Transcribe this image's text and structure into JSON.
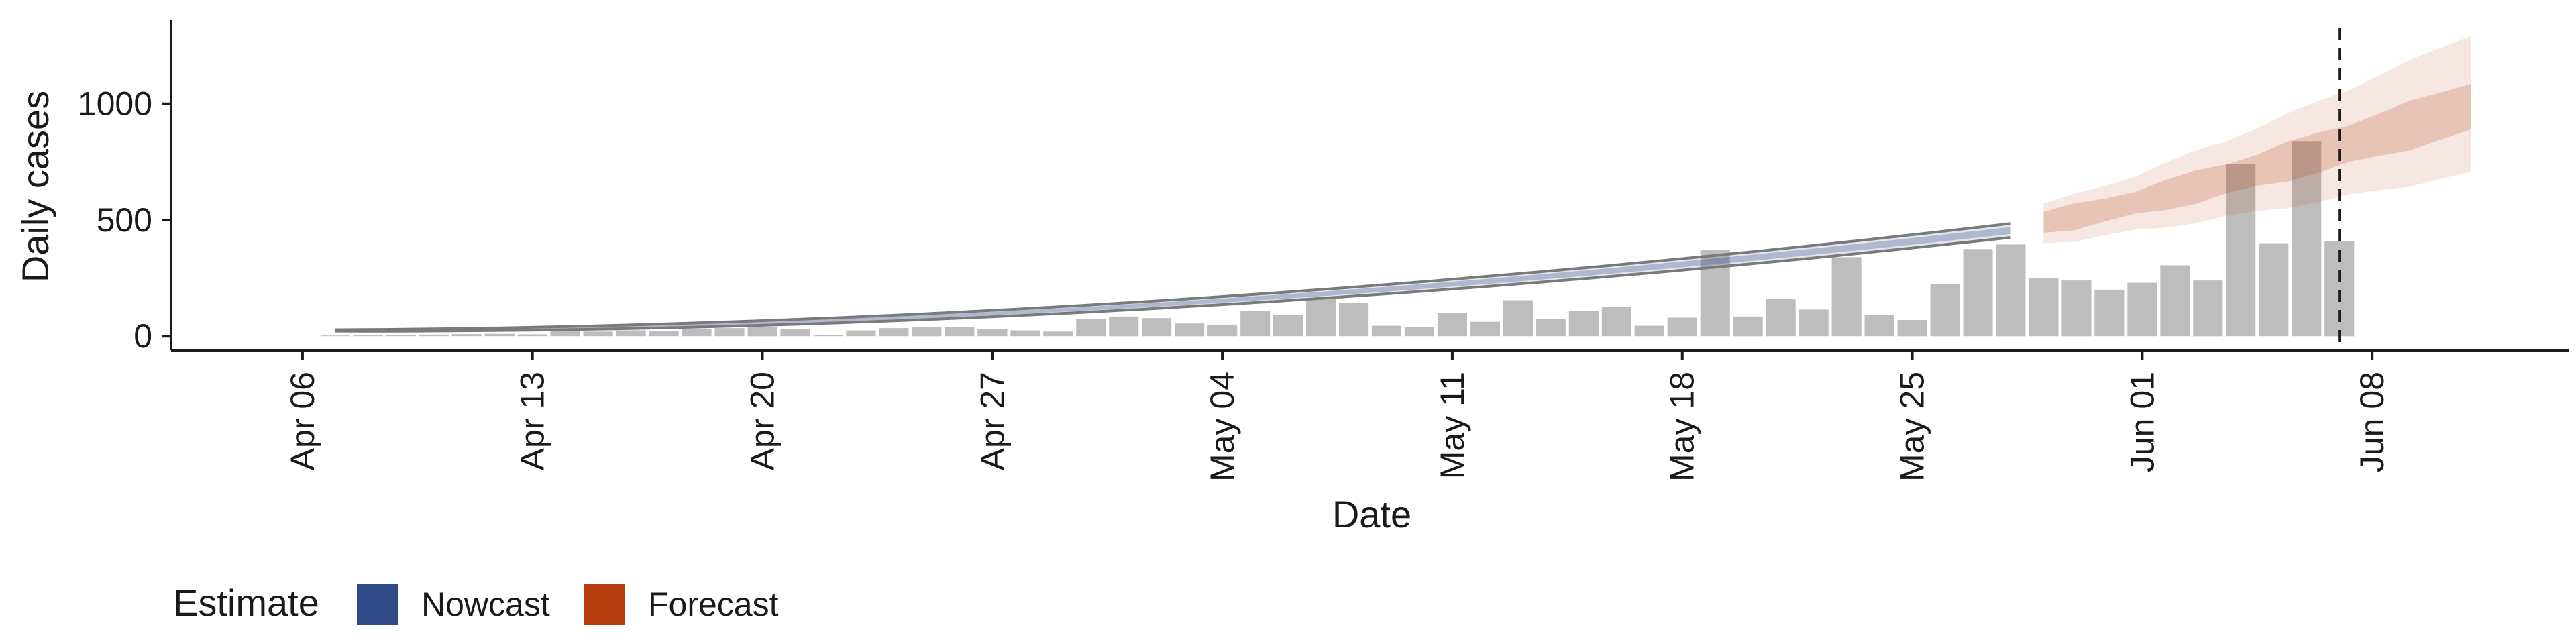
{
  "chart_data": {
    "type": "bar",
    "xlabel": "Date",
    "ylabel": "Daily cases",
    "x_range": [
      "2020-04-02",
      "2020-06-14"
    ],
    "ylim": [
      -60,
      1360
    ],
    "grid": false,
    "y_ticks": [
      0,
      500,
      1000
    ],
    "x_ticks": [
      {
        "date": "2020-04-06",
        "label": "Apr 06"
      },
      {
        "date": "2020-04-13",
        "label": "Apr 13"
      },
      {
        "date": "2020-04-20",
        "label": "Apr 20"
      },
      {
        "date": "2020-04-27",
        "label": "Apr 27"
      },
      {
        "date": "2020-05-04",
        "label": "May 04"
      },
      {
        "date": "2020-05-11",
        "label": "May 11"
      },
      {
        "date": "2020-05-18",
        "label": "May 18"
      },
      {
        "date": "2020-05-25",
        "label": "May 25"
      },
      {
        "date": "2020-06-01",
        "label": "Jun 01"
      },
      {
        "date": "2020-06-08",
        "label": "Jun 08"
      }
    ],
    "bars": {
      "start_date": "2020-04-07",
      "color": "#bdbdbd",
      "values": [
        3,
        5,
        5,
        7,
        9,
        10,
        8,
        25,
        20,
        25,
        22,
        30,
        35,
        40,
        30,
        5,
        25,
        35,
        40,
        38,
        32,
        25,
        20,
        75,
        85,
        78,
        55,
        50,
        110,
        90,
        160,
        145,
        45,
        38,
        100,
        62,
        155,
        75,
        110,
        125,
        45,
        80,
        370,
        85,
        160,
        115,
        340,
        90,
        70,
        225,
        375,
        395,
        250,
        240,
        200,
        230,
        305,
        240,
        740,
        400,
        840,
        410
      ]
    },
    "nowcast": {
      "start_date": "2020-04-07",
      "end_date": "2020-05-28",
      "median_start": 25,
      "median_end": 455,
      "inner_width": [
        4,
        30
      ],
      "outer_width": [
        6,
        60
      ],
      "color": "#3b4f8a"
    },
    "forecast": {
      "start_date": "2020-05-29",
      "end_date": "2020-06-11",
      "median_start": 490,
      "median_end": 1000,
      "inner": {
        "lower": [
          445,
          880
        ],
        "upper": [
          535,
          1095
        ]
      },
      "outer": {
        "lower": [
          400,
          700
        ],
        "upper": [
          570,
          1300
        ]
      },
      "color": "#b53d0f"
    },
    "forecast_date_line": "2020-06-07",
    "legend": {
      "position": "bottom-left",
      "title": "Estimate",
      "entries": [
        {
          "label": "Nowcast",
          "color": "#2f4a86"
        },
        {
          "label": "Forecast",
          "color": "#b53d0f"
        }
      ]
    }
  }
}
